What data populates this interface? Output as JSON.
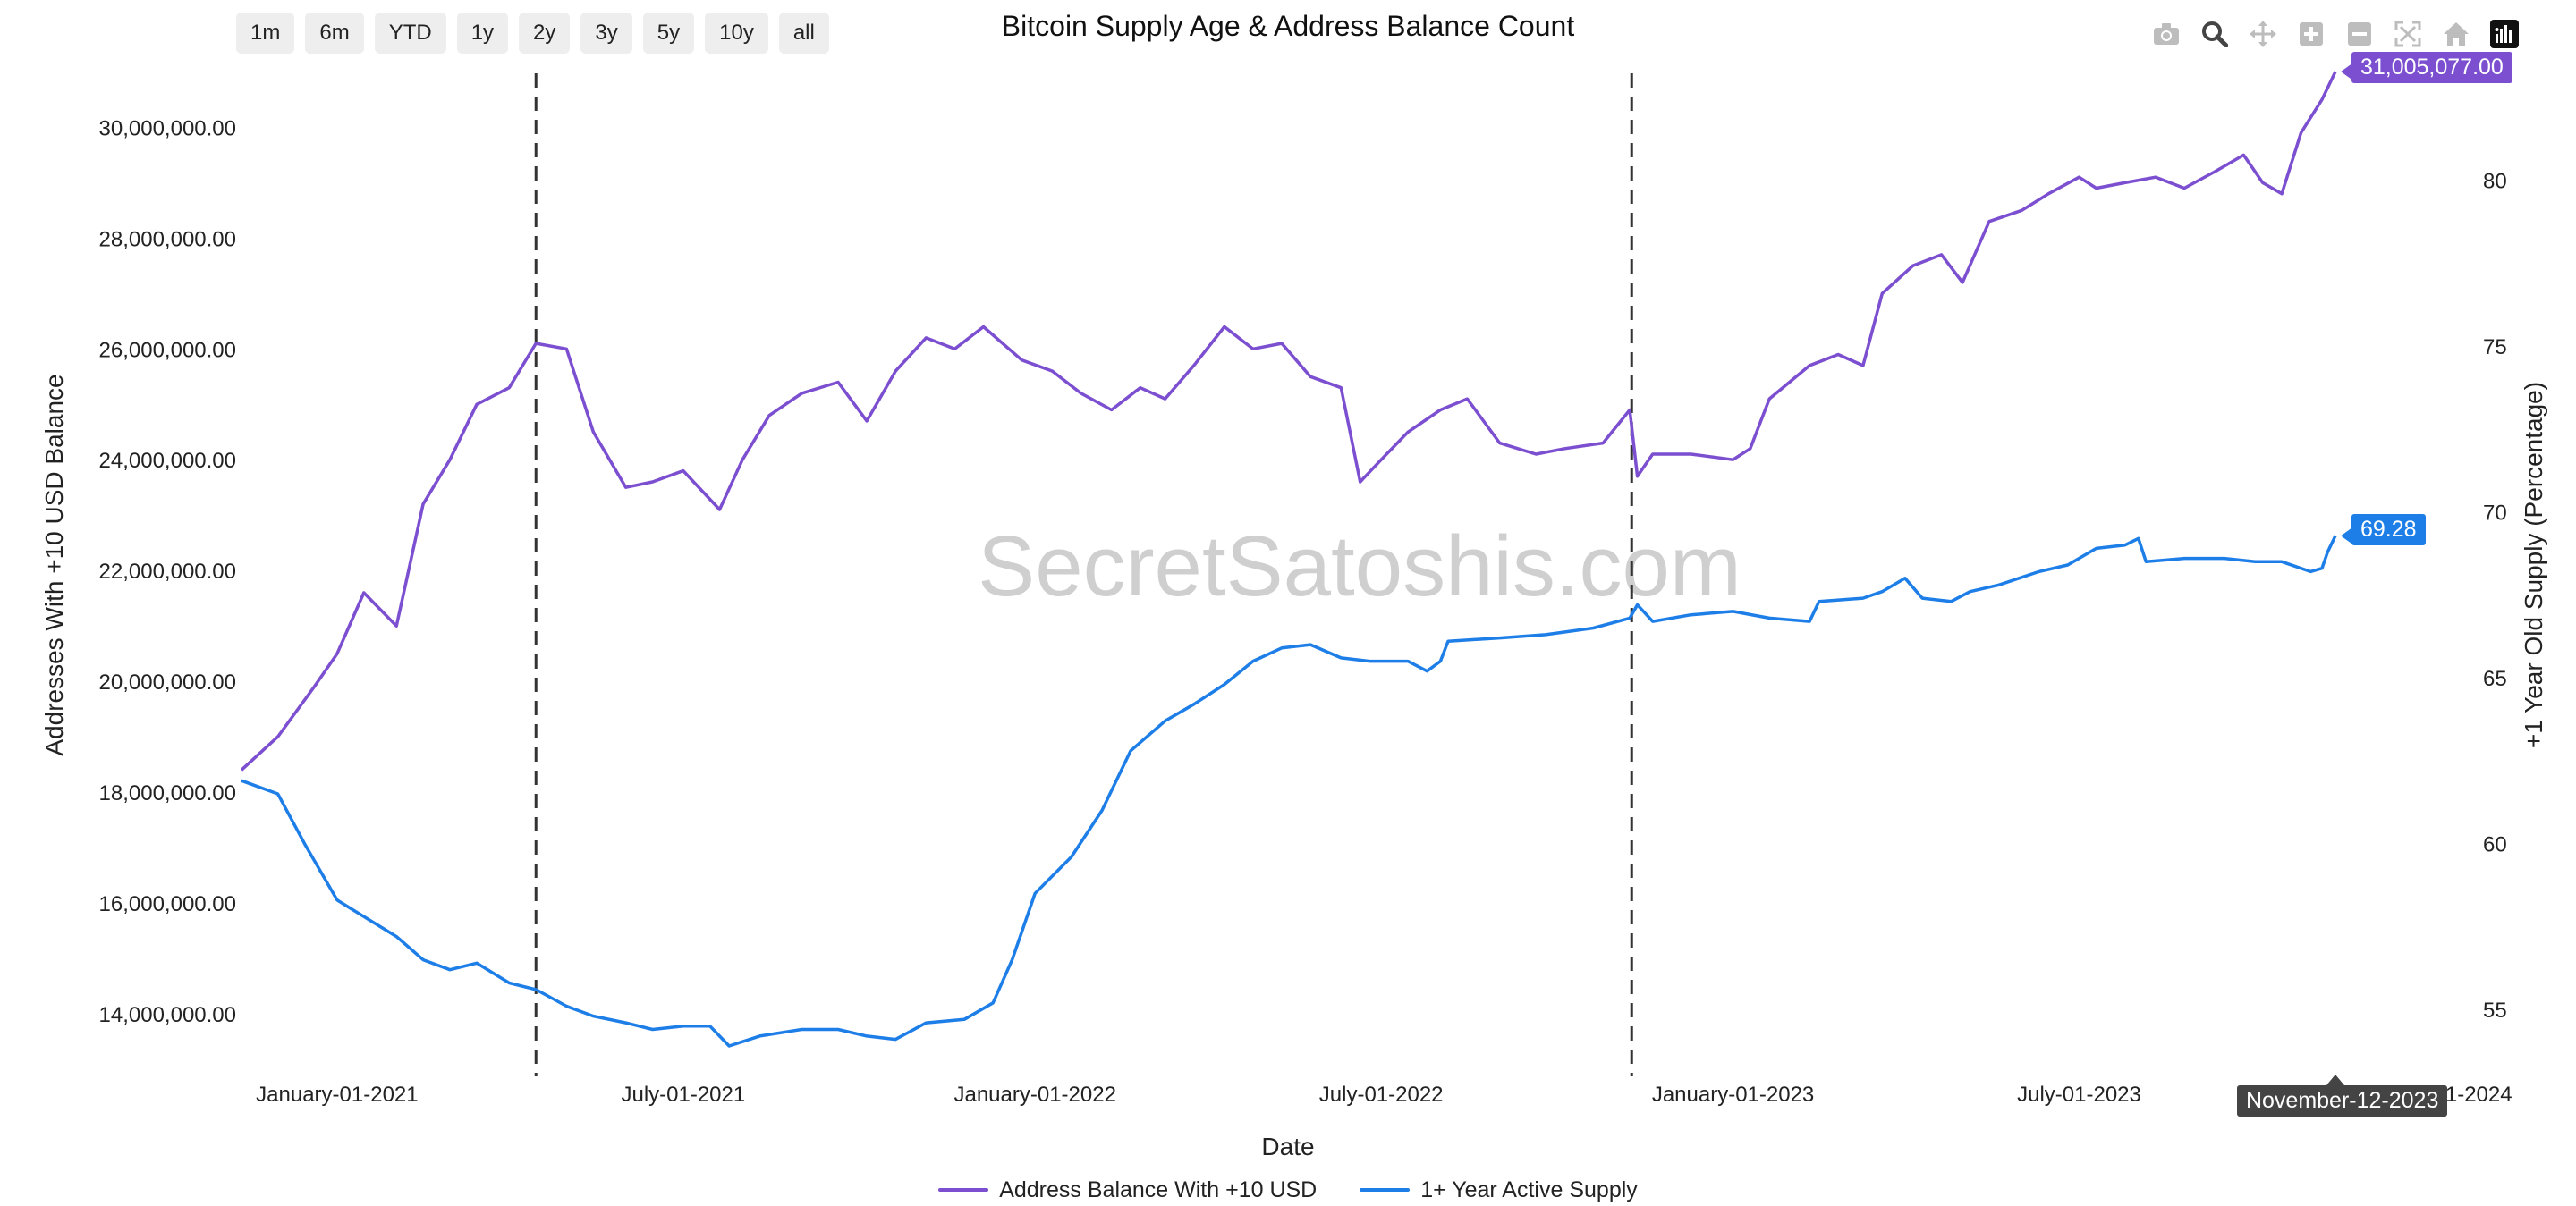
{
  "chart_data": {
    "type": "line",
    "title": "Bitcoin Supply Age & Address Balance Count",
    "xlabel": "Date",
    "ylabel_left": "Addresses With +10 USD Balance",
    "ylabel_right": "+1 Year Old Supply (Percentage)",
    "x_ticks": [
      "January-01-2021",
      "July-01-2021",
      "January-01-2022",
      "July-01-2022",
      "January-01-2023",
      "July-01-2023",
      "January-01-2024"
    ],
    "y_left_ticks": [
      "14,000,000.00",
      "16,000,000.00",
      "18,000,000.00",
      "20,000,000.00",
      "22,000,000.00",
      "24,000,000.00",
      "26,000,000.00",
      "28,000,000.00",
      "30,000,000.00"
    ],
    "y_right_ticks": [
      "55",
      "60",
      "65",
      "70",
      "75",
      "80"
    ],
    "ylim_left": [
      13000000,
      31200000
    ],
    "ylim_right": [
      53.2,
      83.6
    ],
    "xlim": [
      "2020-11-12",
      "2024-01-02"
    ],
    "vlines": [
      "2021-04-15",
      "2022-11-09"
    ],
    "watermark": "SecretSatoshis.com",
    "legend_position": "bottom-center",
    "series": [
      {
        "name": "Address Balance With +10 USD",
        "axis": "left",
        "color": "#7b4fd0",
        "points": [
          [
            "2020-11-12",
            18400000
          ],
          [
            "2020-12-01",
            19000000
          ],
          [
            "2020-12-20",
            19900000
          ],
          [
            "2021-01-01",
            20500000
          ],
          [
            "2021-01-15",
            21600000
          ],
          [
            "2021-02-01",
            21000000
          ],
          [
            "2021-02-15",
            23200000
          ],
          [
            "2021-03-01",
            24000000
          ],
          [
            "2021-03-15",
            25000000
          ],
          [
            "2021-04-01",
            25300000
          ],
          [
            "2021-04-15",
            26100000
          ],
          [
            "2021-05-01",
            26000000
          ],
          [
            "2021-05-15",
            24500000
          ],
          [
            "2021-06-01",
            23500000
          ],
          [
            "2021-06-15",
            23600000
          ],
          [
            "2021-07-01",
            23800000
          ],
          [
            "2021-07-20",
            23100000
          ],
          [
            "2021-08-01",
            24000000
          ],
          [
            "2021-08-15",
            24800000
          ],
          [
            "2021-09-01",
            25200000
          ],
          [
            "2021-09-20",
            25400000
          ],
          [
            "2021-10-05",
            24700000
          ],
          [
            "2021-10-20",
            25600000
          ],
          [
            "2021-11-05",
            26200000
          ],
          [
            "2021-11-20",
            26000000
          ],
          [
            "2021-12-05",
            26400000
          ],
          [
            "2021-12-25",
            25800000
          ],
          [
            "2022-01-10",
            25600000
          ],
          [
            "2022-01-25",
            25200000
          ],
          [
            "2022-02-10",
            24900000
          ],
          [
            "2022-02-25",
            25300000
          ],
          [
            "2022-03-10",
            25100000
          ],
          [
            "2022-03-25",
            25700000
          ],
          [
            "2022-04-10",
            26400000
          ],
          [
            "2022-04-25",
            26000000
          ],
          [
            "2022-05-10",
            26100000
          ],
          [
            "2022-05-25",
            25500000
          ],
          [
            "2022-06-10",
            25300000
          ],
          [
            "2022-06-20",
            23600000
          ],
          [
            "2022-07-01",
            24000000
          ],
          [
            "2022-07-15",
            24500000
          ],
          [
            "2022-08-01",
            24900000
          ],
          [
            "2022-08-15",
            25100000
          ],
          [
            "2022-09-01",
            24300000
          ],
          [
            "2022-09-20",
            24100000
          ],
          [
            "2022-10-05",
            24200000
          ],
          [
            "2022-10-25",
            24300000
          ],
          [
            "2022-11-08",
            24900000
          ],
          [
            "2022-11-12",
            23700000
          ],
          [
            "2022-11-20",
            24100000
          ],
          [
            "2022-12-10",
            24100000
          ],
          [
            "2023-01-01",
            24000000
          ],
          [
            "2023-01-10",
            24200000
          ],
          [
            "2023-01-20",
            25100000
          ],
          [
            "2023-02-10",
            25700000
          ],
          [
            "2023-02-25",
            25900000
          ],
          [
            "2023-03-10",
            25700000
          ],
          [
            "2023-03-20",
            27000000
          ],
          [
            "2023-04-05",
            27500000
          ],
          [
            "2023-04-20",
            27700000
          ],
          [
            "2023-05-01",
            27200000
          ],
          [
            "2023-05-15",
            28300000
          ],
          [
            "2023-06-01",
            28500000
          ],
          [
            "2023-06-15",
            28800000
          ],
          [
            "2023-07-01",
            29100000
          ],
          [
            "2023-07-10",
            28900000
          ],
          [
            "2023-07-25",
            29000000
          ],
          [
            "2023-08-10",
            29100000
          ],
          [
            "2023-08-25",
            28900000
          ],
          [
            "2023-09-10",
            29200000
          ],
          [
            "2023-09-25",
            29500000
          ],
          [
            "2023-10-05",
            29000000
          ],
          [
            "2023-10-15",
            28800000
          ],
          [
            "2023-10-25",
            29900000
          ],
          [
            "2023-11-05",
            30500000
          ],
          [
            "2023-11-12",
            31005077
          ]
        ]
      },
      {
        "name": "1+ Year Active Supply",
        "axis": "right",
        "color": "#1e7ee8",
        "points": [
          [
            "2020-11-12",
            61.9
          ],
          [
            "2020-12-01",
            61.5
          ],
          [
            "2020-12-15",
            60.0
          ],
          [
            "2021-01-01",
            58.3
          ],
          [
            "2021-01-15",
            57.8
          ],
          [
            "2021-02-01",
            57.2
          ],
          [
            "2021-02-15",
            56.5
          ],
          [
            "2021-03-01",
            56.2
          ],
          [
            "2021-03-15",
            56.4
          ],
          [
            "2021-04-01",
            55.8
          ],
          [
            "2021-04-15",
            55.6
          ],
          [
            "2021-05-01",
            55.1
          ],
          [
            "2021-05-15",
            54.8
          ],
          [
            "2021-06-01",
            54.6
          ],
          [
            "2021-06-15",
            54.4
          ],
          [
            "2021-07-01",
            54.5
          ],
          [
            "2021-07-15",
            54.5
          ],
          [
            "2021-07-25",
            53.9
          ],
          [
            "2021-08-10",
            54.2
          ],
          [
            "2021-09-01",
            54.4
          ],
          [
            "2021-09-20",
            54.4
          ],
          [
            "2021-10-05",
            54.2
          ],
          [
            "2021-10-20",
            54.1
          ],
          [
            "2021-11-05",
            54.6
          ],
          [
            "2021-11-25",
            54.7
          ],
          [
            "2021-12-10",
            55.2
          ],
          [
            "2021-12-20",
            56.5
          ],
          [
            "2022-01-01",
            58.5
          ],
          [
            "2022-01-20",
            59.6
          ],
          [
            "2022-02-05",
            61.0
          ],
          [
            "2022-02-20",
            62.8
          ],
          [
            "2022-03-10",
            63.7
          ],
          [
            "2022-03-25",
            64.2
          ],
          [
            "2022-04-10",
            64.8
          ],
          [
            "2022-04-25",
            65.5
          ],
          [
            "2022-05-10",
            65.9
          ],
          [
            "2022-05-25",
            66.0
          ],
          [
            "2022-06-10",
            65.6
          ],
          [
            "2022-06-25",
            65.5
          ],
          [
            "2022-07-15",
            65.5
          ],
          [
            "2022-07-25",
            65.2
          ],
          [
            "2022-08-01",
            65.5
          ],
          [
            "2022-08-05",
            66.1
          ],
          [
            "2022-09-01",
            66.2
          ],
          [
            "2022-09-25",
            66.3
          ],
          [
            "2022-10-20",
            66.5
          ],
          [
            "2022-11-08",
            66.8
          ],
          [
            "2022-11-12",
            67.2
          ],
          [
            "2022-11-20",
            66.7
          ],
          [
            "2022-12-10",
            66.9
          ],
          [
            "2023-01-01",
            67.0
          ],
          [
            "2023-01-20",
            66.8
          ],
          [
            "2023-02-10",
            66.7
          ],
          [
            "2023-02-15",
            67.3
          ],
          [
            "2023-03-10",
            67.4
          ],
          [
            "2023-03-20",
            67.6
          ],
          [
            "2023-04-01",
            68.0
          ],
          [
            "2023-04-10",
            67.4
          ],
          [
            "2023-04-25",
            67.3
          ],
          [
            "2023-05-05",
            67.6
          ],
          [
            "2023-05-20",
            67.8
          ],
          [
            "2023-06-10",
            68.2
          ],
          [
            "2023-06-25",
            68.4
          ],
          [
            "2023-07-10",
            68.9
          ],
          [
            "2023-07-25",
            69.0
          ],
          [
            "2023-08-01",
            69.2
          ],
          [
            "2023-08-05",
            68.5
          ],
          [
            "2023-08-25",
            68.6
          ],
          [
            "2023-09-15",
            68.6
          ],
          [
            "2023-10-01",
            68.5
          ],
          [
            "2023-10-15",
            68.5
          ],
          [
            "2023-10-30",
            68.2
          ],
          [
            "2023-11-05",
            68.3
          ],
          [
            "2023-11-08",
            68.8
          ],
          [
            "2023-11-12",
            69.28
          ]
        ]
      }
    ],
    "hover": {
      "date": "November-12-2023",
      "left_value_label": "31,005,077.00",
      "right_value_label": "69.28"
    }
  },
  "range_selector": [
    "1m",
    "6m",
    "YTD",
    "1y",
    "2y",
    "3y",
    "5y",
    "10y",
    "all"
  ],
  "modebar_icons": [
    "camera-icon",
    "zoom-icon",
    "pan-icon",
    "zoom-in-icon",
    "zoom-out-icon",
    "autoscale-icon",
    "home-icon",
    "plotly-logo-icon"
  ]
}
